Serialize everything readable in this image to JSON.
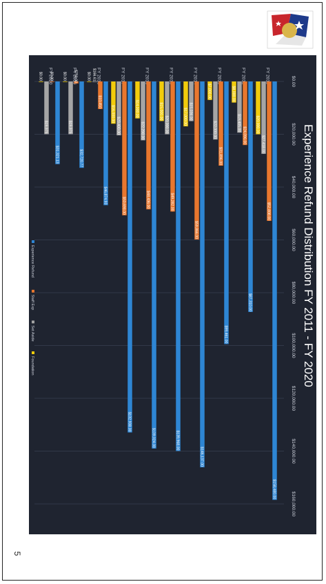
{
  "page": {
    "number": "5"
  },
  "colors": {
    "background": "#1f2430",
    "refund": "#2e86d4",
    "staff": "#e8772e",
    "setaside": "#a5a5a5",
    "foundation": "#f2cc0c"
  },
  "chart_data": {
    "type": "bar",
    "orientation": "horizontal",
    "title": "Experience Refund Distribution FY 2011 - FY 2020",
    "categories": [
      "FY 2011",
      "FY 2012",
      "FY 2013",
      "FY 2014",
      "FY 2015",
      "FY 2016",
      "FY 2017",
      "FY 2018",
      "FY 2019",
      "FY 2020"
    ],
    "xlim": [
      0,
      160000
    ],
    "ticks": [
      "$0.00",
      "$20,000.00",
      "$40,000.00",
      "$60,000.00",
      "$80,000.00",
      "$100,000.00",
      "$120,000.00",
      "$140,000.00",
      "$160,000.00"
    ],
    "tick_values": [
      0,
      20000,
      40000,
      60000,
      80000,
      100000,
      120000,
      140000,
      160000
    ],
    "series": [
      {
        "name": "Experience Refund",
        "color_key": "refund",
        "values": [
          158480,
          87310,
          99461,
          146137,
          139968,
          139024,
          132938,
          46874.93,
          32720.77,
          31321.13
        ],
        "labels": [
          "$158,480.00",
          "$87,310.00",
          "$99,461.00",
          "$146,137.00",
          "$139,968.00",
          "$139,024.00",
          "$132,938.00",
          "$46,874.93",
          "$32,720.77",
          "$31,321.13"
        ]
      },
      {
        "name": "Staff Exp",
        "color_key": "staff",
        "values": [
          52808,
          24096,
          31896,
          59866,
          49282,
          48436,
          50698,
          10450,
          750,
          0
        ],
        "labels": [
          "$52,808.00",
          "$24,096.00",
          "$31,896.00",
          "$59,866.00",
          "$49,282.00",
          "$48,436.00",
          "$50,698.00",
          "$10,450",
          "$750.00",
          "$0.00"
        ]
      },
      {
        "name": "Set Aside",
        "color_key": "setaside",
        "values": [
          27418,
          19405,
          22000,
          15036,
          20000,
          22298,
          20400,
          166.61,
          19975,
          19975
        ],
        "labels": [
          "$27,418.00",
          "$19,405.00",
          "$22,000.00",
          "$15,036.00",
          "$20,000.00",
          "$22,298.00",
          "$20,400.00",
          "$166.61",
          "$19,975",
          "$19,975"
        ]
      },
      {
        "name": "Foundation",
        "color_key": "foundation",
        "values": [
          20000,
          8000,
          7000,
          17000,
          15000,
          14000,
          16000,
          0,
          0,
          0
        ],
        "labels": [
          "$20,000.00",
          "$8,000.00",
          "$7,000.00",
          "$17,000.00",
          "$15,000.00",
          "$14,000.00",
          "$16,000.00",
          "$0.00",
          "$0.00",
          "$0.00"
        ]
      }
    ],
    "legend_position": "bottom",
    "grid": true
  }
}
